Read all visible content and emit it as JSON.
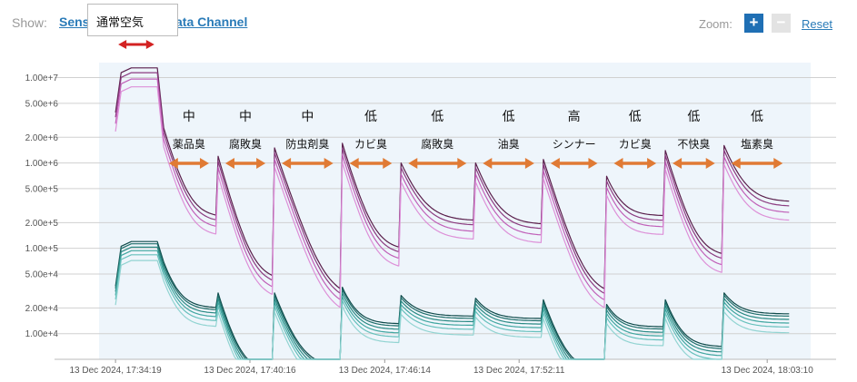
{
  "header": {
    "show_label": "Show:",
    "sensor_link": "Sens",
    "channel_link": "ata Channel",
    "tooltip_text": "通常空気",
    "zoom_label": "Zoom:",
    "zoom_in_label": "+",
    "zoom_out_label": "−",
    "reset_label": "Reset"
  },
  "colors": {
    "plot_background": "#eef5fb",
    "grid": "#d0d0d0",
    "upper_series": [
      "#5a1f4c",
      "#8b3b80",
      "#c060b8",
      "#dd90d8"
    ],
    "lower_series": [
      "#0e4a4a",
      "#1f6e6a",
      "#2a8a84",
      "#40a6a0",
      "#66c0bc",
      "#92d4d2"
    ],
    "arrow": "#e07a34",
    "red_arrow": "#d32222"
  },
  "chart_data": {
    "type": "line",
    "y_scale": "log",
    "y_ticks": [
      "1.00e+7",
      "5.00e+6",
      "2.00e+6",
      "1.00e+6",
      "5.00e+5",
      "2.00e+5",
      "1.00e+5",
      "5.00e+4",
      "2.00e+4",
      "1.00e+4"
    ],
    "y_tick_values": [
      10000000,
      5000000,
      2000000,
      1000000,
      500000,
      200000,
      100000,
      50000,
      20000,
      10000
    ],
    "ylim": [
      5000,
      15000000
    ],
    "x_ticks": [
      "13 Dec 2024, 17:34:19",
      "13 Dec 2024, 17:40:16",
      "13 Dec 2024, 17:46:14",
      "13 Dec 2024, 17:52:11",
      "13 Dec 2024, 18:03:10"
    ],
    "x_tick_minutes": [
      0,
      5.95,
      11.917,
      17.867,
      28.85
    ],
    "xlim_minutes": [
      -2.7,
      31.9
    ],
    "baseline_label": "通常空気",
    "baseline_span_minutes": [
      0,
      2
    ],
    "segments": [
      {
        "level": "中",
        "label": "薬品臭",
        "span_minutes": [
          2.0,
          4.5
        ],
        "peak": [
          3100000,
          80000
        ],
        "tail": [
          230000,
          20000
        ]
      },
      {
        "level": "中",
        "label": "腐敗臭",
        "span_minutes": [
          4.5,
          7.0
        ],
        "peak": [
          1200000,
          30000
        ],
        "tail": [
          42000,
          3500
        ]
      },
      {
        "level": "中",
        "label": "防虫剤臭",
        "span_minutes": [
          7.0,
          10.0
        ],
        "peak": [
          1500000,
          30000
        ],
        "tail": [
          26000,
          4000
        ]
      },
      {
        "level": "低",
        "label": "カビ臭",
        "span_minutes": [
          10.0,
          12.6
        ],
        "peak": [
          1700000,
          35000
        ],
        "tail": [
          95000,
          13000
        ]
      },
      {
        "level": "低",
        "label": "腐敗臭",
        "span_minutes": [
          12.6,
          15.9
        ],
        "peak": [
          1000000,
          28000
        ],
        "tail": [
          210000,
          16000
        ]
      },
      {
        "level": "低",
        "label": "油臭",
        "span_minutes": [
          15.9,
          18.9
        ],
        "peak": [
          1000000,
          26000
        ],
        "tail": [
          190000,
          15000
        ]
      },
      {
        "level": "高",
        "label": "シンナー",
        "span_minutes": [
          18.9,
          21.7
        ],
        "peak": [
          1100000,
          25000
        ],
        "tail": [
          28000,
          3500
        ]
      },
      {
        "level": "低",
        "label": "カビ臭",
        "span_minutes": [
          21.7,
          24.3
        ],
        "peak": [
          700000,
          22000
        ],
        "tail": [
          240000,
          12000
        ]
      },
      {
        "level": "低",
        "label": "不快臭",
        "span_minutes": [
          24.3,
          26.9
        ],
        "peak": [
          1400000,
          25000
        ],
        "tail": [
          80000,
          7000
        ]
      },
      {
        "level": "低",
        "label": "塩素臭",
        "span_minutes": [
          26.9,
          29.9
        ],
        "peak": [
          1600000,
          30000
        ],
        "tail": [
          350000,
          17000
        ]
      }
    ],
    "baseline_levels": [
      13000000,
      120000
    ],
    "series": [
      {
        "group": "upper",
        "factor": 1.0
      },
      {
        "group": "upper",
        "factor": 0.88
      },
      {
        "group": "upper",
        "factor": 0.74
      },
      {
        "group": "upper",
        "factor": 0.6
      },
      {
        "group": "lower",
        "factor": 1.0
      },
      {
        "group": "lower",
        "factor": 0.94
      },
      {
        "group": "lower",
        "factor": 0.86
      },
      {
        "group": "lower",
        "factor": 0.78
      },
      {
        "group": "lower",
        "factor": 0.7
      },
      {
        "group": "lower",
        "factor": 0.6
      }
    ]
  }
}
